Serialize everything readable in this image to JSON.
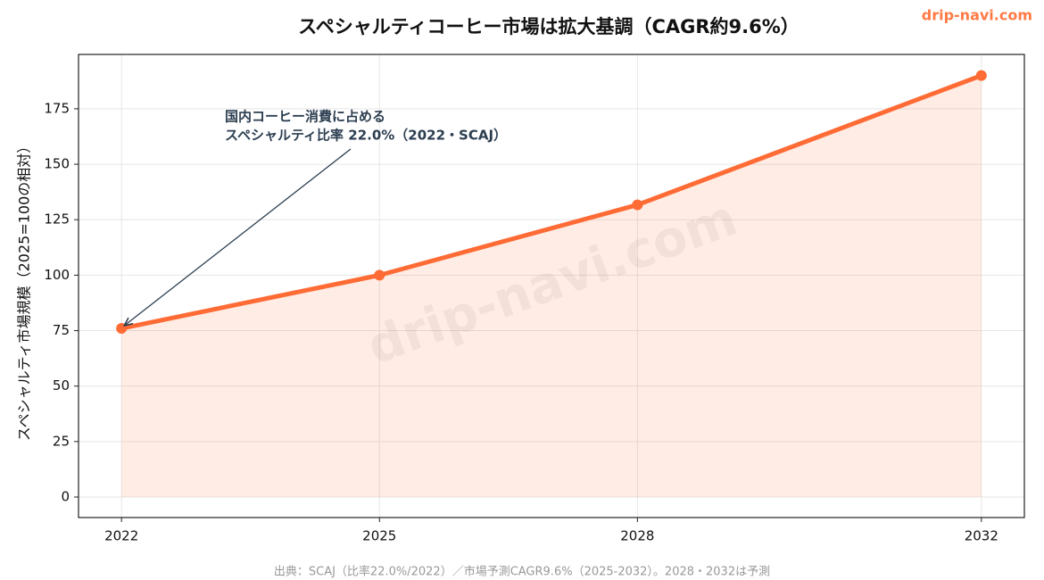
{
  "chart_data": {
    "type": "line",
    "title": "スペシャルティコーヒー市場は拡大基調（CAGR約9.6%）",
    "ylabel": "スペシャルティ市場規模（2025=100の相対）",
    "x": [
      2022,
      2025,
      2028,
      2032
    ],
    "series": [
      {
        "name": "市場規模",
        "color": "#ff6b35",
        "values": [
          76,
          100,
          131.7,
          190
        ]
      }
    ],
    "xlim": [
      2021.5,
      2032.5
    ],
    "ylim": [
      -9.25,
      199.5
    ],
    "xticks": [
      2022,
      2025,
      2028,
      2032
    ],
    "yticks": [
      0,
      25,
      50,
      75,
      100,
      125,
      150,
      175
    ],
    "grid": true,
    "annotation": [
      "国内コーヒー消費に占める",
      "スペシャルティ比率 22.0%（2022・SCAJ）"
    ],
    "watermark": "drip-navi.com",
    "brand": "drip-navi.com",
    "source": "出典：SCAJ（比率22.0%/2022）／市場予測CAGR9.6%（2025-2032）。2028・2032は予測"
  }
}
